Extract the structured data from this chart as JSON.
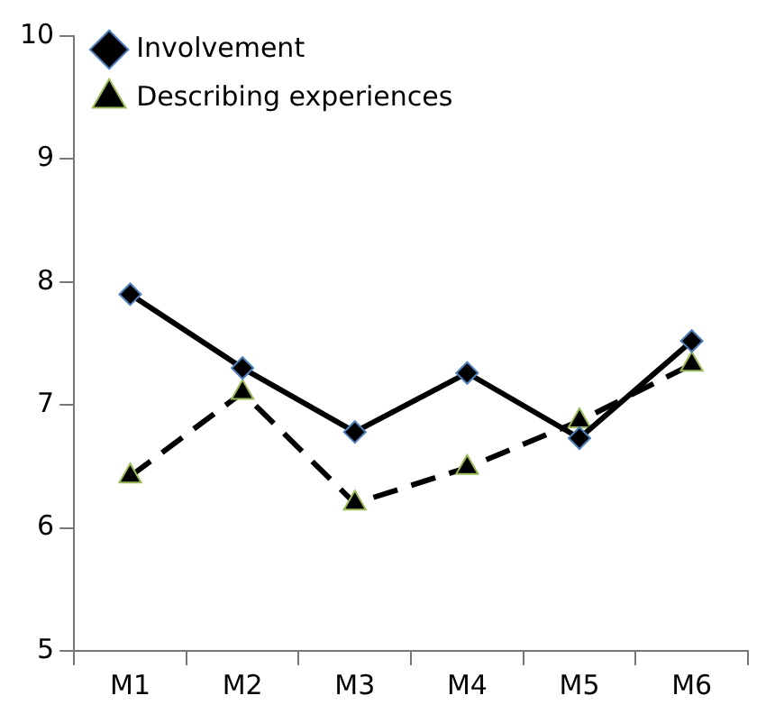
{
  "chart_data": {
    "type": "line",
    "categories": [
      "M1",
      "M2",
      "M3",
      "M4",
      "M5",
      "M6"
    ],
    "series": [
      {
        "name": "Involvement",
        "color": "#000000",
        "marker": "diamond",
        "line_style": "solid",
        "values": [
          7.9,
          7.3,
          6.78,
          7.26,
          6.73,
          7.52
        ]
      },
      {
        "name": "Describing experiences",
        "color": "#000000",
        "marker": "triangle",
        "line_style": "dashed",
        "values": [
          6.42,
          7.1,
          6.2,
          6.49,
          6.87,
          7.33
        ]
      }
    ],
    "ylim": [
      5,
      10
    ],
    "yticks": [
      5,
      6,
      7,
      8,
      9,
      10
    ],
    "grid": false,
    "legend": "top left"
  }
}
